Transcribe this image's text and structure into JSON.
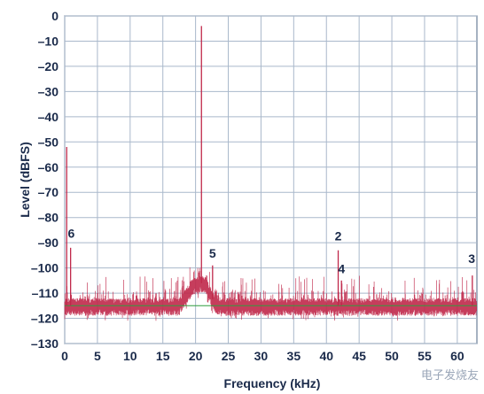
{
  "chart_data": {
    "type": "line",
    "xlabel": "Frequency (kHz)",
    "ylabel": "Level (dBFS)",
    "xlim": [
      0,
      63
    ],
    "ylim": [
      -130,
      0
    ],
    "x_ticks": [
      0,
      5,
      10,
      15,
      20,
      25,
      30,
      35,
      40,
      45,
      50,
      55,
      60
    ],
    "x_tick_labels": [
      "0",
      "5",
      "10",
      "15",
      "20",
      "25",
      "30",
      "35",
      "40",
      "45",
      "50",
      "55",
      "60"
    ],
    "y_ticks": [
      0,
      -10,
      -20,
      -30,
      -40,
      -50,
      -60,
      -70,
      -80,
      -90,
      -100,
      -110,
      -120,
      -130
    ],
    "y_tick_labels": [
      "0",
      "–10",
      "–20",
      "–30",
      "–40",
      "–50",
      "–60",
      "–70",
      "–80",
      "–90",
      "–100",
      "–110",
      "–120",
      "–130"
    ],
    "grid": true,
    "series_color": "#c0284a",
    "noise_floor_color": "#2e9e3e",
    "noise_floor_level": -115,
    "spectrum_outline": [
      {
        "x": 0.0,
        "y": -115
      },
      {
        "x": 17.5,
        "y": -115
      },
      {
        "x": 18.5,
        "y": -111
      },
      {
        "x": 19.5,
        "y": -107
      },
      {
        "x": 20.5,
        "y": -106
      },
      {
        "x": 21.5,
        "y": -106
      },
      {
        "x": 22.5,
        "y": -112
      },
      {
        "x": 23.3,
        "y": -115
      },
      {
        "x": 63.0,
        "y": -115
      }
    ],
    "peaks": [
      {
        "x": 0.3,
        "y": -52
      },
      {
        "x": 0.9,
        "y": -92
      },
      {
        "x": 20.9,
        "y": -4
      },
      {
        "x": 22.6,
        "y": -99
      },
      {
        "x": 41.8,
        "y": -93
      },
      {
        "x": 42.3,
        "y": -105
      },
      {
        "x": 62.3,
        "y": -103
      }
    ],
    "annotations": [
      {
        "text": "6",
        "x": 1.0,
        "y": -88
      },
      {
        "text": "5",
        "x": 22.6,
        "y": -96
      },
      {
        "text": "2",
        "x": 41.8,
        "y": -89
      },
      {
        "text": "4",
        "x": 42.3,
        "y": -102
      },
      {
        "text": "3",
        "x": 62.2,
        "y": -98
      }
    ]
  },
  "watermark": "电子发烧友"
}
